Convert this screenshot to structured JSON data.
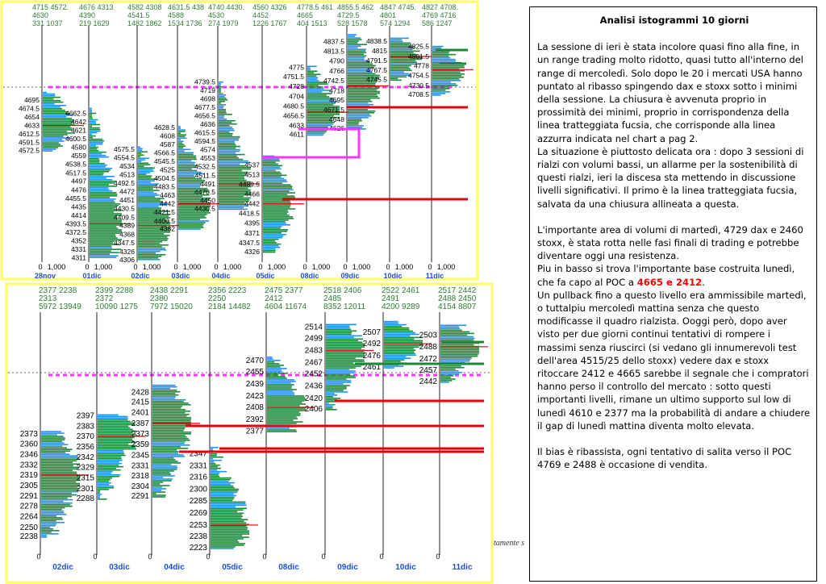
{
  "note": {
    "title": "Analisi istogrammi 10 giorni",
    "p1": "La sessione di ieri è stata incolore quasi fino alla fine, in un range trading molto ridotto, quasi tutto all'interno del range di mercoledì. Solo dopo le 20 i mercati USA hanno puntato al ribasso spingendo dax e stoxx sotto i minimi della sessione. La chiusura è avvenuta proprio in prossimità dei minimi, proprio in corrispondenza della linea tratteggiata fucsia, che corrisponde alla linea azzurra indicata nel chart a pag 2.",
    "p2": "La situazione è piuttosto delicata ora : dopo 3 sessioni di rialzi con volumi bassi, un allarme per la sostenibilità di questi rialzi, ieri la discesa sta mettendo in discussione livelli significativi. Il primo è la linea tratteggiata fucsia, salvata da una chiusura allineata a questa.",
    "p3": "L'importante area di volumi di martedì, 4729 dax e 2460 stoxx, è stata rotta nelle fasi finali di trading e potrebbe diventare oggi una resistenza.",
    "p4a": "Piu in basso si trova l'importante base costruita lunedì, che fa capo al POC a ",
    "p4red": "4665 e 2412",
    "p4b": ".",
    "p5": "Un pullback fino a questo livello era ammissibile martedì, o tuttalpiu mercoledì mattina senza che questo modificasse il quadro rialzista. Ooggi però, dopo aver visto per due giorni continui tentativi di rompere i massimi senza riuscirci (si vedano gli innumerevoli test dell'area 4515/25 dello stoxx) vedere dax e stoxx ritoccare 2412 e 4665 sarebbe il segnale che i compratori hanno perso il controllo del mercato : sotto questi importanti livelli, rimane un ultimo supporto sul low di lunedì 4610 e 2377 ma la probabilità di andare a chiudere il gap di lunedì mattina diventa molto elevata.",
    "p6": "Il bias è ribassista, ogni tentativo di salita verso il POC 4769 e 2488 è occasione di vendita."
  },
  "footer_fragment": "tamente s",
  "colors": {
    "frame": "#ffff66",
    "blue": "#1e90ff",
    "green": "#1a8a3a",
    "poc": "#e8000b",
    "fuchsia": "#ff33ff",
    "magenta": "#ff33ff",
    "header": "#2e7d32",
    "date": "#1e4fd8"
  },
  "chart_data": [
    {
      "type": "volume-profile",
      "instrument_hint": "dax",
      "header_rows": [
        [
          "4715 4572.",
          "4630",
          "331 1037"
        ],
        [
          "4676 4313",
          "4390",
          "219 1629"
        ],
        [
          "4582 4308",
          "4541.5",
          "1482 1862"
        ],
        [
          "4631.5 438",
          "4588",
          "1534 1736"
        ],
        [
          "4740 4430.",
          "4530",
          "274 1979"
        ],
        [
          "4560 4326",
          "4452",
          "1226 1767"
        ],
        [
          "4778.5 461",
          "4665",
          "404 1513"
        ],
        [
          "4855.5 462",
          "4729.5",
          "528 1578"
        ],
        [
          "4847 4745.",
          "4801",
          "574 1294"
        ],
        [
          "4827 4708.",
          "4769 4716",
          "586 1247"
        ]
      ],
      "dates": [
        "28nov",
        "01dic",
        "02dic",
        "03dic",
        "04dic",
        "05dic",
        "08dic",
        "09dic",
        "10dic",
        "11dic"
      ],
      "x_tick_labels": [
        "0",
        "1,000"
      ],
      "sessions": [
        {
          "date": "28nov",
          "high": 4715,
          "low": 4572.5,
          "poc": 4633,
          "labels": [
            "4695",
            "4674.5",
            "4654",
            "4633",
            "4612.5",
            "4591.5",
            "4572.5"
          ]
        },
        {
          "date": "01dic",
          "high": 4676,
          "low": 4313,
          "poc": 4393.5,
          "labels": [
            "4662.5",
            "4642",
            "4621",
            "4600.5",
            "4580",
            "4559",
            "4538.5",
            "4517.5",
            "4497",
            "4476",
            "4455.5",
            "4435",
            "4414",
            "4393.5",
            "4372.5",
            "4352",
            "4331",
            "4311"
          ]
        },
        {
          "date": "02dic",
          "high": 4582,
          "low": 4308,
          "poc": 4389,
          "labels": [
            "4575.5",
            "4554.5",
            "4534",
            "4513",
            "4492.5",
            "4472",
            "4451",
            "4430.5",
            "4409.5",
            "4389",
            "4368",
            "4347.5",
            "4326",
            "4306"
          ]
        },
        {
          "date": "03dic",
          "high": 4631.5,
          "low": 4382,
          "poc": 4442,
          "labels": [
            "4628.5",
            "4608",
            "4587",
            "4566.5",
            "4545.5",
            "4525",
            "4504.5",
            "4483.5",
            "4463",
            "4442",
            "4421.5",
            "4400.5",
            "4382"
          ]
        },
        {
          "date": "04dic",
          "high": 4740,
          "low": 4430.5,
          "poc": 4491,
          "labels": [
            "4739.5",
            "4719",
            "4698",
            "4677.5",
            "4656.5",
            "4636",
            "4615.5",
            "4594.5",
            "4574",
            "4553",
            "4532.5",
            "4511.5",
            "4491",
            "4470.5",
            "4450",
            "4430.5"
          ]
        },
        {
          "date": "05dic",
          "high": 4560,
          "low": 4326,
          "poc": 4442,
          "labels": [
            "4537",
            "4513",
            "4489.5",
            "4466",
            "4442",
            "4418.5",
            "4395",
            "4371",
            "4347.5",
            "4326"
          ]
        },
        {
          "date": "08dic",
          "high": 4778.5,
          "low": 4611,
          "poc": 4665,
          "labels": [
            "4775",
            "4751.5",
            "4728",
            "4704",
            "4680.5",
            "4656.5",
            "4633",
            "4611"
          ]
        },
        {
          "date": "09dic",
          "high": 4855.5,
          "low": 4626,
          "poc": 4729.5,
          "labels": [
            "4837.5",
            "4813.5",
            "4790",
            "4766",
            "4742.5",
            "4718",
            "4695",
            "4671.5",
            "4648",
            "4626"
          ]
        },
        {
          "date": "10dic",
          "high": 4847,
          "low": 4745,
          "poc": 4801,
          "labels": [
            "4838.5",
            "4815",
            "4791.5",
            "4767.5",
            "4745.5"
          ]
        },
        {
          "date": "11dic",
          "high": 4827,
          "low": 4708.5,
          "poc": 4769,
          "labels": [
            "4825.5",
            "4801.5",
            "4778",
            "4754.5",
            "4730.5",
            "4708.5"
          ]
        }
      ]
    },
    {
      "type": "volume-profile",
      "instrument_hint": "stoxx",
      "header_rows": [
        [
          "2377 2238",
          "2313",
          "5972 13949"
        ],
        [
          "2399 2288",
          "2372",
          "10090 1275"
        ],
        [
          "2438 2291",
          "2380",
          "7972 15020"
        ],
        [
          "2356 2223",
          "2250",
          "2184 14482"
        ],
        [
          "2475 2377",
          "2412",
          "4604 11674"
        ],
        [
          "2518 2406",
          "2485",
          "8352 12011"
        ],
        [
          "2522 2461",
          "2491",
          "4200 9289"
        ],
        [
          "2517 2442",
          "2488 2450",
          "4154 8807"
        ]
      ],
      "dates": [
        "02dic",
        "03dic",
        "04dic",
        "05dic",
        "08dic",
        "09dic",
        "10dic",
        "11dic"
      ],
      "x_tick_labels": [
        "0"
      ],
      "sessions": [
        {
          "date": "02dic",
          "high": 2377,
          "low": 2238,
          "poc": 2319,
          "labels": [
            "2373",
            "2360",
            "2346",
            "2332",
            "2319",
            "2305",
            "2291",
            "2278",
            "2264",
            "2250",
            "2238"
          ]
        },
        {
          "date": "03dic",
          "high": 2399,
          "low": 2288,
          "poc": 2370,
          "labels": [
            "2397",
            "2383",
            "2370",
            "2356",
            "2342",
            "2329",
            "2315",
            "2301",
            "2288"
          ]
        },
        {
          "date": "04dic",
          "high": 2438,
          "low": 2291,
          "poc": 2387,
          "labels": [
            "2428",
            "2415",
            "2401",
            "2387",
            "2373",
            "2359",
            "2345",
            "2331",
            "2318",
            "2304",
            "2291"
          ]
        },
        {
          "date": "05dic",
          "high": 2356,
          "low": 2223,
          "poc": 2253,
          "labels": [
            "2347",
            "2331",
            "2316",
            "2300",
            "2285",
            "2269",
            "2253",
            "2238",
            "2223"
          ]
        },
        {
          "date": "08dic",
          "high": 2475,
          "low": 2377,
          "poc": 2408,
          "labels": [
            "2470",
            "2455",
            "2439",
            "2423",
            "2408",
            "2392",
            "2377"
          ]
        },
        {
          "date": "09dic",
          "high": 2518,
          "low": 2406,
          "poc": 2483,
          "labels": [
            "2514",
            "2499",
            "2483",
            "2467",
            "2452",
            "2436",
            "2420",
            "2406"
          ]
        },
        {
          "date": "10dic",
          "high": 2522,
          "low": 2461,
          "poc": 2492,
          "labels": [
            "2507",
            "2492",
            "2476",
            "2461"
          ]
        },
        {
          "date": "11dic",
          "high": 2517,
          "low": 2442,
          "poc": 2488,
          "labels": [
            "2503",
            "2488",
            "2472",
            "2457",
            "2442"
          ]
        }
      ]
    }
  ]
}
